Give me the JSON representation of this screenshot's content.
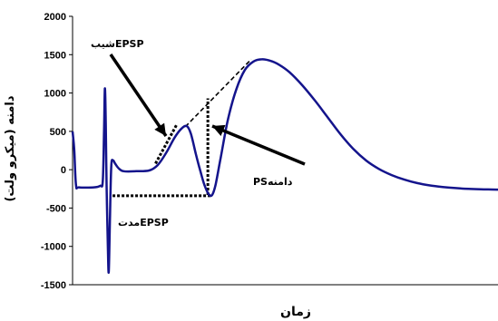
{
  "chart_data": {
    "type": "line",
    "xlabel": "زمان",
    "ylabel": "دامنه (میکرو ولت)",
    "ylim": [
      -1500,
      2000
    ],
    "yticks": [
      2000,
      1500,
      1000,
      500,
      0,
      -500,
      -1000,
      -1500
    ],
    "grid": false,
    "series": [
      {
        "color": "#14148c",
        "points": [
          [
            0.0,
            500
          ],
          [
            0.4,
            250
          ],
          [
            0.8,
            -200
          ],
          [
            1.5,
            -230
          ],
          [
            5.0,
            -230
          ],
          [
            6.5,
            -210
          ],
          [
            7.1,
            -150
          ],
          [
            7.4,
            500
          ],
          [
            7.6,
            1060
          ],
          [
            7.8,
            600
          ],
          [
            8.0,
            -200
          ],
          [
            8.3,
            -1000
          ],
          [
            8.5,
            -1330
          ],
          [
            8.8,
            -600
          ],
          [
            9.1,
            50
          ],
          [
            9.5,
            120
          ],
          [
            10.0,
            80
          ],
          [
            10.8,
            20
          ],
          [
            12.0,
            -20
          ],
          [
            15.0,
            -20
          ],
          [
            18.0,
            -10
          ],
          [
            20.0,
            60
          ],
          [
            22.0,
            220
          ],
          [
            24.0,
            420
          ],
          [
            25.5,
            530
          ],
          [
            26.8,
            570
          ],
          [
            27.8,
            470
          ],
          [
            29.0,
            200
          ],
          [
            30.0,
            -10
          ],
          [
            31.0,
            -200
          ],
          [
            32.0,
            -320
          ],
          [
            32.8,
            -330
          ],
          [
            33.6,
            -200
          ],
          [
            34.8,
            150
          ],
          [
            36.5,
            650
          ],
          [
            38.5,
            1050
          ],
          [
            40.5,
            1300
          ],
          [
            42.5,
            1410
          ],
          [
            44.5,
            1440
          ],
          [
            46.5,
            1420
          ],
          [
            48.5,
            1370
          ],
          [
            51.0,
            1270
          ],
          [
            54.0,
            1100
          ],
          [
            57.0,
            900
          ],
          [
            60.0,
            680
          ],
          [
            63.0,
            460
          ],
          [
            66.0,
            270
          ],
          [
            69.0,
            120
          ],
          [
            72.0,
            10
          ],
          [
            75.0,
            -70
          ],
          [
            78.0,
            -130
          ],
          [
            81.0,
            -175
          ],
          [
            84.0,
            -205
          ],
          [
            87.0,
            -225
          ],
          [
            90.0,
            -240
          ],
          [
            93.0,
            -250
          ],
          [
            96.0,
            -255
          ],
          [
            100.0,
            -260
          ]
        ]
      }
    ],
    "annotations": {
      "slope_label": "شیبEPSP",
      "ps_amplitude_label": "PSدامنه",
      "duration_label": "مدتEPSP"
    }
  }
}
